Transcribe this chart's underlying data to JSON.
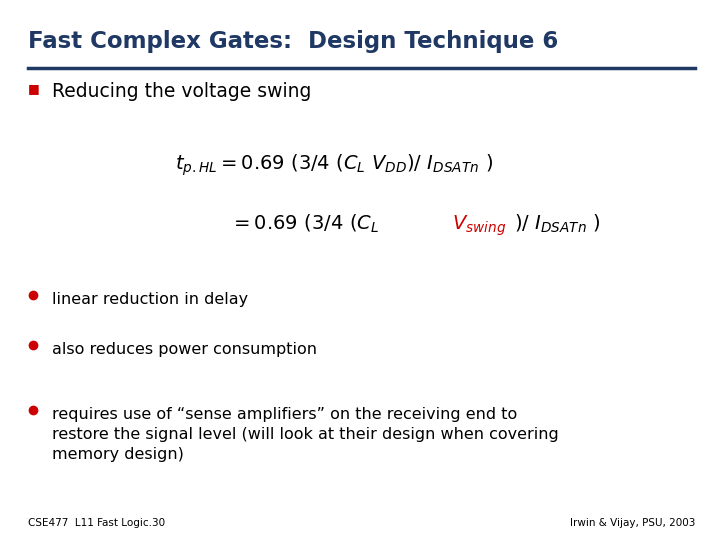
{
  "title": "Fast Complex Gates:  Design Technique 6",
  "title_color": "#1F3864",
  "bg_color": "#FFFFFF",
  "bullet_color": "#CC0000",
  "q_bullet_color": "#CC0000",
  "subtitle": "Reducing the voltage swing",
  "eq1": "$t_{p.HL}\\! = 0.69\\,(3/4\\,(C_L\\,V_{DD})/\\,I_{DSATn}\\,)$",
  "eq2_black1": "$= 0.69\\,(3/4\\,(C_L\\,$",
  "eq2_red": "$V_{swing}$",
  "eq2_black2": "$/\\,I_{DSATn}\\,)$",
  "bullets": [
    "linear reduction in delay",
    "also reduces power consumption",
    "requires use of “sense amplifiers” on the receiving end to\nrestore the signal level (will look at their design when covering\nmemory design)"
  ],
  "footer_left": "CSE477  L11 Fast Logic.30",
  "footer_right": "Irwin & Vijay, PSU, 2003",
  "footer_color": "#000000",
  "text_color": "#000000"
}
